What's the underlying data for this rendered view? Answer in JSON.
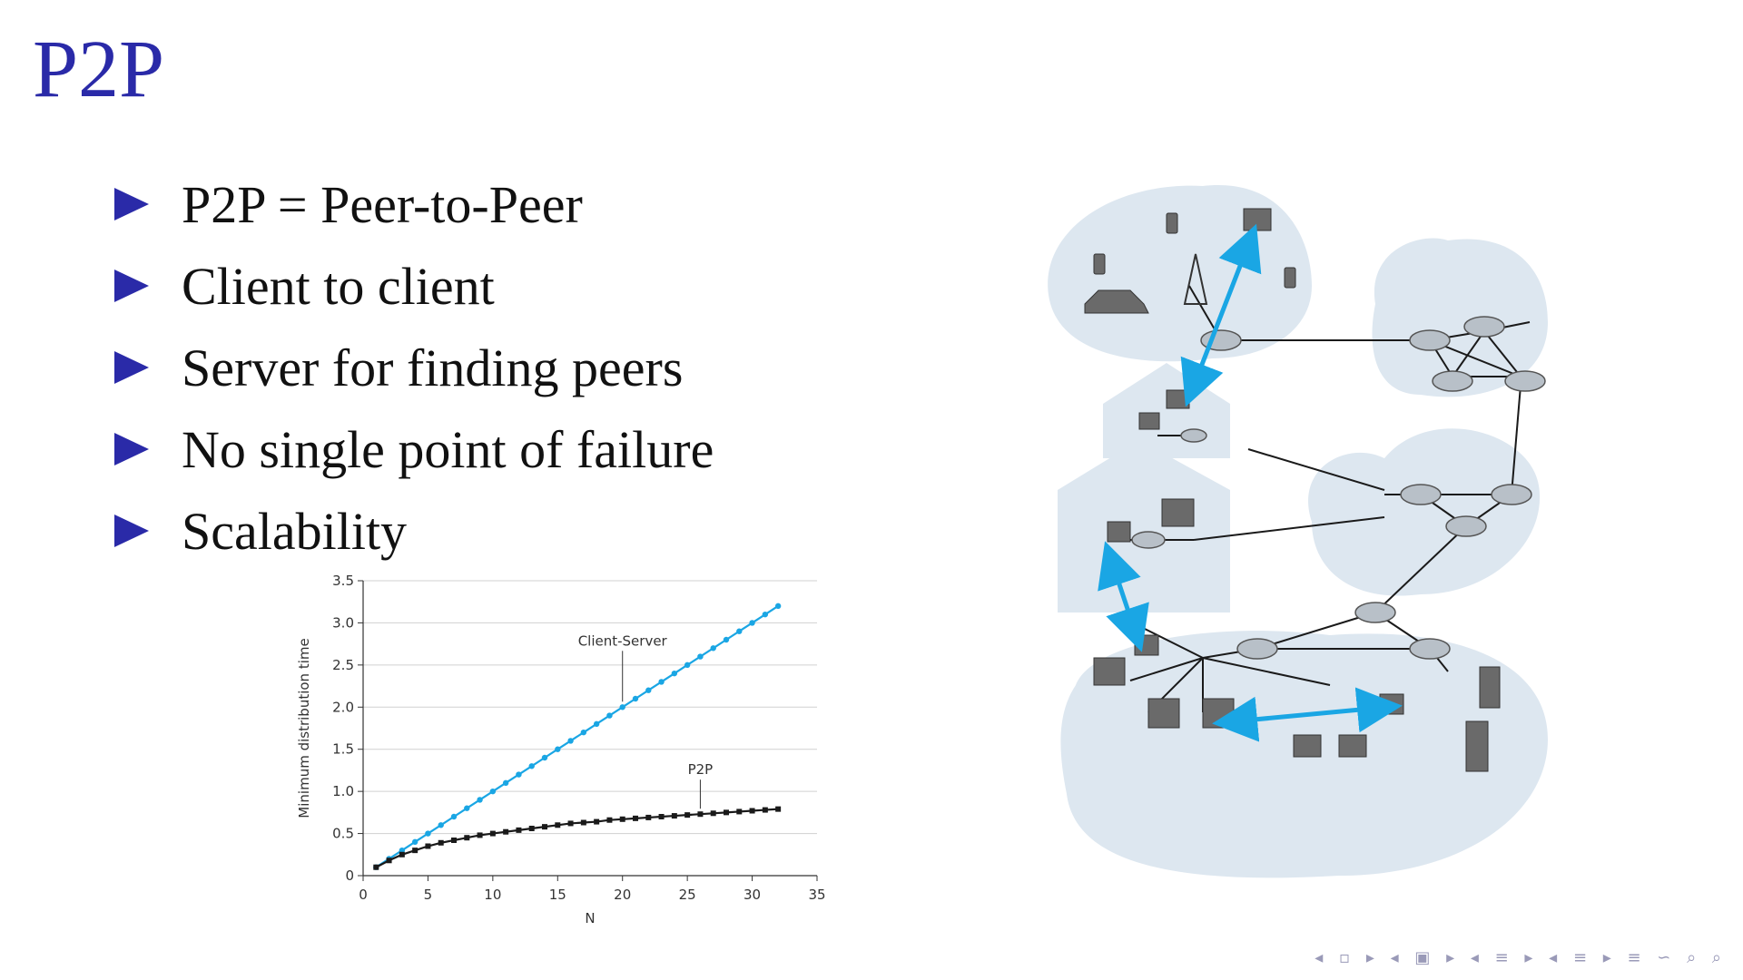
{
  "slide": {
    "title": "P2P",
    "bullets": [
      "P2P = Peer-to-Peer",
      "Client to client",
      "Server for finding peers",
      "No single point of failure",
      "Scalability"
    ]
  },
  "chart_data": {
    "type": "line",
    "xlabel": "N",
    "ylabel": "Minimum distribution time",
    "xlim": [
      0,
      35
    ],
    "ylim": [
      0,
      3.5
    ],
    "xticks": [
      "0",
      "5",
      "10",
      "15",
      "20",
      "25",
      "30",
      "35"
    ],
    "yticks": [
      "0",
      "0.5",
      "1.0",
      "1.5",
      "2.0",
      "2.5",
      "3.0",
      "3.5"
    ],
    "grid": "horizontal",
    "series": [
      {
        "name": "Client-Server",
        "color": "#1aa6e4",
        "x": [
          1,
          2,
          3,
          4,
          5,
          6,
          7,
          8,
          9,
          10,
          11,
          12,
          13,
          14,
          15,
          16,
          17,
          18,
          19,
          20,
          21,
          22,
          23,
          24,
          25,
          26,
          27,
          28,
          29,
          30,
          31,
          32
        ],
        "values": [
          0.1,
          0.2,
          0.3,
          0.4,
          0.5,
          0.6,
          0.7,
          0.8,
          0.9,
          1.0,
          1.1,
          1.2,
          1.3,
          1.4,
          1.5,
          1.6,
          1.7,
          1.8,
          1.9,
          2.0,
          2.1,
          2.2,
          2.3,
          2.4,
          2.5,
          2.6,
          2.7,
          2.8,
          2.9,
          3.0,
          3.1,
          3.2
        ]
      },
      {
        "name": "P2P",
        "color": "#1a1a1a",
        "x": [
          1,
          2,
          3,
          4,
          5,
          6,
          7,
          8,
          9,
          10,
          11,
          12,
          13,
          14,
          15,
          16,
          17,
          18,
          19,
          20,
          21,
          22,
          23,
          24,
          25,
          26,
          27,
          28,
          29,
          30,
          31,
          32
        ],
        "values": [
          0.1,
          0.18,
          0.25,
          0.3,
          0.35,
          0.39,
          0.42,
          0.45,
          0.48,
          0.5,
          0.52,
          0.54,
          0.56,
          0.58,
          0.6,
          0.62,
          0.63,
          0.64,
          0.66,
          0.67,
          0.68,
          0.69,
          0.7,
          0.71,
          0.72,
          0.73,
          0.74,
          0.75,
          0.76,
          0.77,
          0.78,
          0.79
        ]
      }
    ]
  },
  "nav": {
    "controls": "◂ ▫ ▸ ◂ ▣ ▸ ◂ ≡ ▸ ◂ ≡ ▸ ≡ ∽ ⌕ ⌕"
  }
}
